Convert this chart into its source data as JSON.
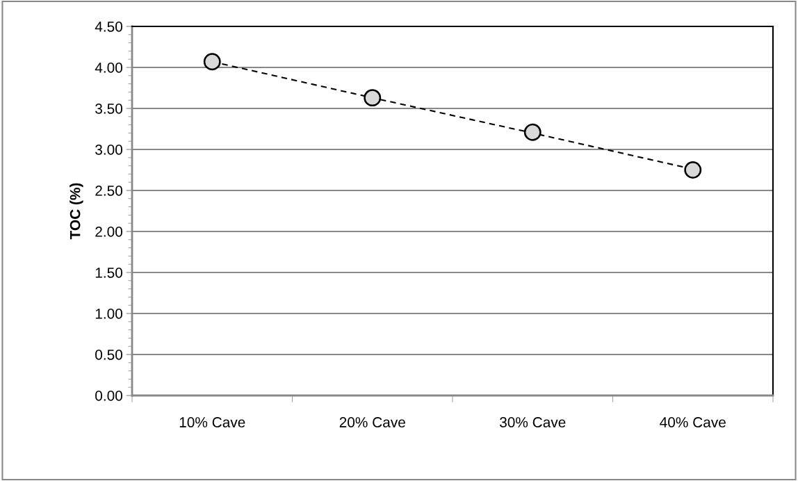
{
  "chart_data": {
    "type": "line",
    "ylabel": "TOC (%)",
    "categories": [
      "10% Cave",
      "20% Cave",
      "30% Cave",
      "40% Cave"
    ],
    "series": [
      {
        "type": "scatter",
        "color": "#d9d9d9",
        "values": [
          4.07,
          3.63,
          3.21,
          2.75
        ],
        "marker": "circle"
      },
      {
        "color": "#000000",
        "values": [
          4.07,
          3.63,
          3.2,
          2.76
        ],
        "line_style": "dashed"
      }
    ],
    "ylim": [
      0,
      4.5
    ],
    "yticks": [
      {
        "value": 0,
        "label": "0.00"
      },
      {
        "value": 0.5,
        "label": "0.50"
      },
      {
        "value": 1,
        "label": "1.00"
      },
      {
        "value": 1.5,
        "label": "1.50"
      },
      {
        "value": 2,
        "label": "2.00"
      },
      {
        "value": 2.5,
        "label": "2.50"
      },
      {
        "value": 3,
        "label": "3.00"
      },
      {
        "value": 3.5,
        "label": "3.50"
      },
      {
        "value": 4,
        "label": "4.00"
      },
      {
        "value": 4.5,
        "label": "4.50"
      }
    ],
    "grid": "y",
    "legend": false
  }
}
